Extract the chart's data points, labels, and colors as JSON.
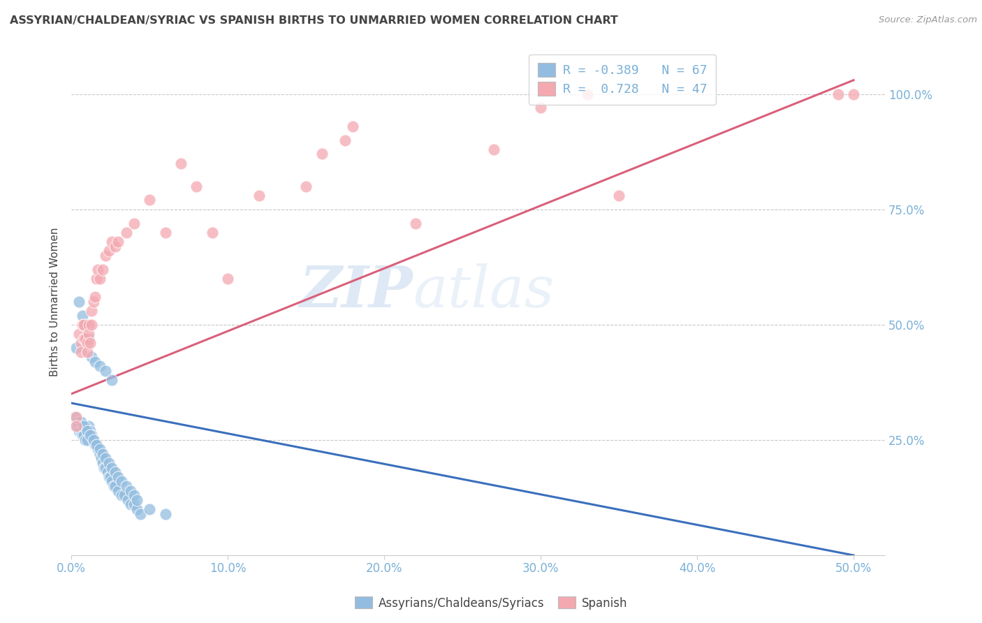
{
  "title": "ASSYRIAN/CHALDEAN/SYRIAC VS SPANISH BIRTHS TO UNMARRIED WOMEN CORRELATION CHART",
  "source": "Source: ZipAtlas.com",
  "ylabel": "Births to Unmarried Women",
  "legend_label1": "Assyrians/Chaldeans/Syriacs",
  "legend_label2": "Spanish",
  "legend_r1": "R = -0.389",
  "legend_n1": "N = 67",
  "legend_r2": "R =  0.728",
  "legend_n2": "N = 47",
  "color_blue": "#93bde0",
  "color_pink": "#f4a8b0",
  "color_blue_line": "#3a6fbc",
  "color_pink_line": "#d9607a",
  "color_grid": "#c8c8c8",
  "color_title": "#444444",
  "color_tick": "#7ab0d8",
  "background": "#ffffff",
  "watermark_zip": "ZIP",
  "watermark_atlas": "atlas",
  "xlim": [
    0.0,
    0.52
  ],
  "ylim": [
    0.0,
    1.1
  ],
  "xtick_vals": [
    0.0,
    0.1,
    0.2,
    0.3,
    0.4,
    0.5
  ],
  "ytick_vals": [
    0.25,
    0.5,
    0.75,
    1.0
  ],
  "blue_line_x0": 0.0,
  "blue_line_y0": 0.33,
  "blue_line_x1": 0.5,
  "blue_line_y1": 0.0,
  "pink_line_x0": 0.0,
  "pink_line_y0": 0.35,
  "pink_line_x1": 0.5,
  "pink_line_y1": 1.03,
  "blue_x": [
    0.002,
    0.003,
    0.004,
    0.005,
    0.006,
    0.007,
    0.008,
    0.009,
    0.01,
    0.011,
    0.012,
    0.013,
    0.014,
    0.015,
    0.016,
    0.017,
    0.018,
    0.019,
    0.02,
    0.021,
    0.022,
    0.023,
    0.024,
    0.025,
    0.026,
    0.027,
    0.028,
    0.03,
    0.032,
    0.034,
    0.036,
    0.038,
    0.04,
    0.042,
    0.044,
    0.002,
    0.004,
    0.006,
    0.008,
    0.01,
    0.012,
    0.014,
    0.016,
    0.018,
    0.02,
    0.022,
    0.024,
    0.026,
    0.028,
    0.03,
    0.032,
    0.035,
    0.038,
    0.04,
    0.042,
    0.05,
    0.06,
    0.003,
    0.005,
    0.007,
    0.009,
    0.011,
    0.013,
    0.015,
    0.018,
    0.022,
    0.026
  ],
  "blue_y": [
    0.29,
    0.28,
    0.28,
    0.27,
    0.27,
    0.26,
    0.26,
    0.25,
    0.25,
    0.28,
    0.27,
    0.26,
    0.25,
    0.24,
    0.24,
    0.23,
    0.22,
    0.21,
    0.2,
    0.19,
    0.19,
    0.18,
    0.17,
    0.17,
    0.16,
    0.15,
    0.15,
    0.14,
    0.13,
    0.13,
    0.12,
    0.11,
    0.11,
    0.1,
    0.09,
    0.3,
    0.29,
    0.29,
    0.28,
    0.27,
    0.26,
    0.25,
    0.24,
    0.23,
    0.22,
    0.21,
    0.2,
    0.19,
    0.18,
    0.17,
    0.16,
    0.15,
    0.14,
    0.13,
    0.12,
    0.1,
    0.09,
    0.45,
    0.55,
    0.52,
    0.5,
    0.47,
    0.43,
    0.42,
    0.41,
    0.4,
    0.38
  ],
  "pink_x": [
    0.003,
    0.003,
    0.005,
    0.006,
    0.006,
    0.007,
    0.008,
    0.008,
    0.009,
    0.01,
    0.01,
    0.011,
    0.011,
    0.012,
    0.013,
    0.013,
    0.014,
    0.015,
    0.016,
    0.017,
    0.018,
    0.02,
    0.022,
    0.024,
    0.026,
    0.028,
    0.03,
    0.035,
    0.04,
    0.05,
    0.06,
    0.07,
    0.08,
    0.09,
    0.1,
    0.12,
    0.15,
    0.16,
    0.175,
    0.18,
    0.22,
    0.27,
    0.3,
    0.33,
    0.35,
    0.49,
    0.5
  ],
  "pink_y": [
    0.3,
    0.28,
    0.48,
    0.46,
    0.44,
    0.5,
    0.5,
    0.47,
    0.47,
    0.46,
    0.44,
    0.5,
    0.48,
    0.46,
    0.53,
    0.5,
    0.55,
    0.56,
    0.6,
    0.62,
    0.6,
    0.62,
    0.65,
    0.66,
    0.68,
    0.67,
    0.68,
    0.7,
    0.72,
    0.77,
    0.7,
    0.85,
    0.8,
    0.7,
    0.6,
    0.78,
    0.8,
    0.87,
    0.9,
    0.93,
    0.72,
    0.88,
    0.97,
    1.0,
    0.78,
    1.0,
    1.0
  ]
}
